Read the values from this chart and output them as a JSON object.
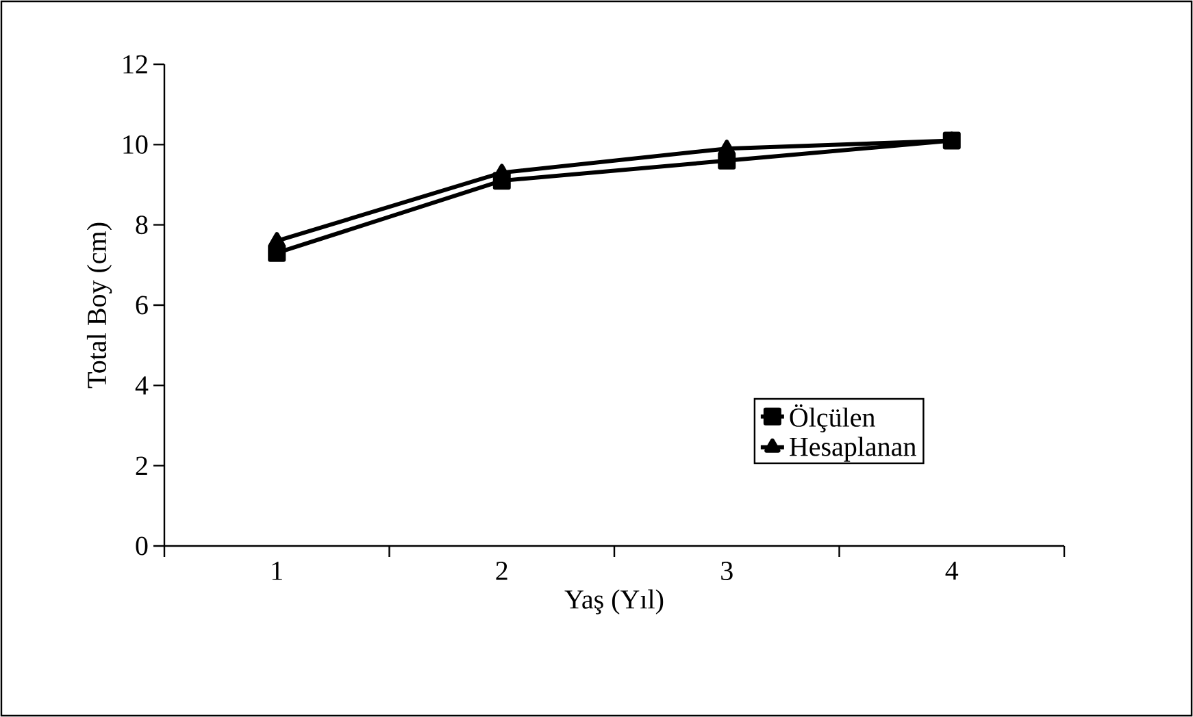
{
  "chart_data": {
    "type": "line",
    "xlabel": "Yaş (Yıl)",
    "ylabel": "Total Boy (cm)",
    "categories": [
      "1",
      "2",
      "3",
      "4"
    ],
    "ylim": [
      0,
      12
    ],
    "yticks": [
      0,
      2,
      4,
      6,
      8,
      10,
      12
    ],
    "legend": "right",
    "grid": false,
    "line_style": "solid",
    "series": [
      {
        "name": "Ölçülen",
        "color": "#000000",
        "marker": "square",
        "values": [
          7.3,
          9.1,
          9.6,
          10.1
        ]
      },
      {
        "name": "Hesaplanan",
        "color": "#000000",
        "marker": "triangle",
        "values": [
          7.6,
          9.3,
          9.9,
          10.1
        ]
      }
    ]
  }
}
